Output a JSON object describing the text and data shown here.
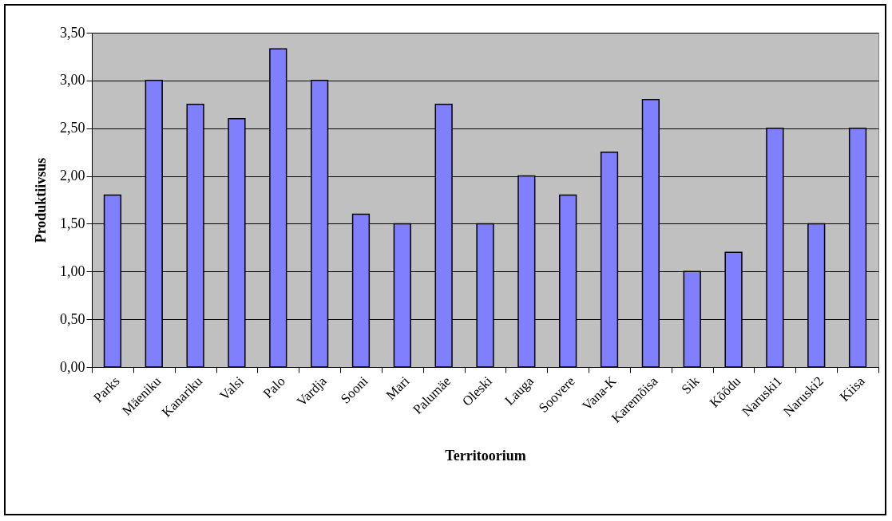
{
  "chart_data": {
    "type": "bar",
    "xlabel": "Territoorium",
    "ylabel": "Produktiivsus",
    "categories": [
      "Parks",
      "Mäeniku",
      "Kanariku",
      "Valsi",
      "Palo",
      "Vardja",
      "Sooni",
      "Mari",
      "Palumäe",
      "Oleski",
      "Lauga",
      "Soovere",
      "Vana-K",
      "Karemõisa",
      "Sik",
      "Kõõdu",
      "Naruski1",
      "Naruski2",
      "Kiisa"
    ],
    "values": [
      1.8,
      3.0,
      2.75,
      2.6,
      3.33,
      3.0,
      1.6,
      1.5,
      2.75,
      1.5,
      2.0,
      1.8,
      2.25,
      2.8,
      1.0,
      1.2,
      2.5,
      1.5,
      2.5
    ],
    "color": "#8080ff",
    "ylim": [
      0,
      3.5
    ],
    "yticks": [
      {
        "value": 0,
        "label": "0,00"
      },
      {
        "value": 0.5,
        "label": "0,50"
      },
      {
        "value": 1,
        "label": "1,00"
      },
      {
        "value": 1.5,
        "label": "1,50"
      },
      {
        "value": 2,
        "label": "2,00"
      },
      {
        "value": 2.5,
        "label": "2,50"
      },
      {
        "value": 3,
        "label": "3,00"
      },
      {
        "value": 3.5,
        "label": "3,50"
      }
    ],
    "grid": "y"
  }
}
